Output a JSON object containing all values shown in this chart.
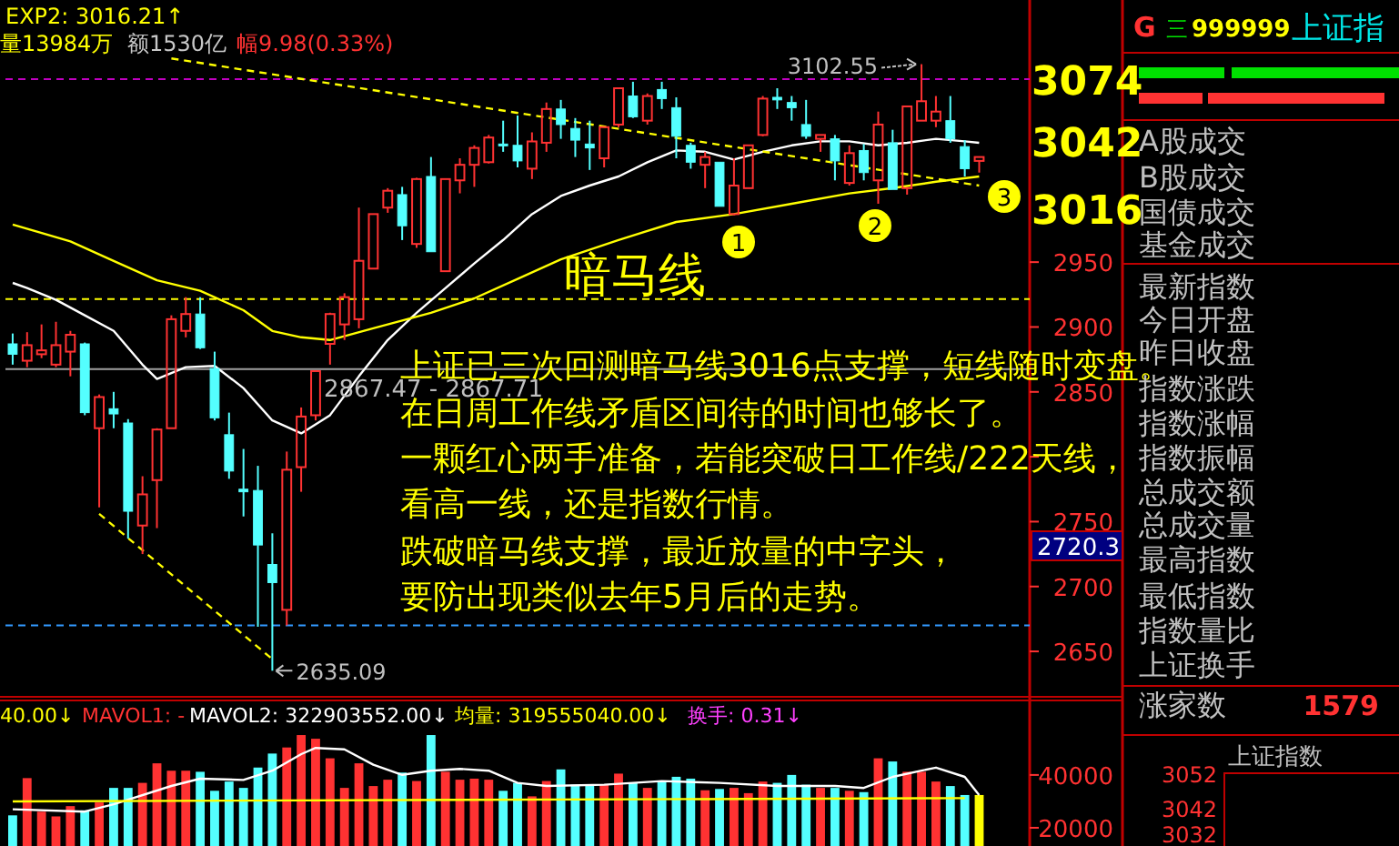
{
  "chart_data": [
    {
      "type": "candlestick",
      "categories": [
        null,
        null,
        null,
        null,
        null,
        null,
        null,
        null,
        null,
        null,
        null,
        null,
        null,
        null,
        null,
        null,
        null,
        null,
        null,
        null,
        null,
        null,
        null,
        null,
        null,
        null,
        null,
        null,
        null,
        null,
        null,
        null,
        null,
        null,
        null,
        null,
        null,
        null,
        null,
        null,
        null,
        null,
        null,
        null,
        null,
        null,
        null,
        null,
        null,
        null,
        null,
        null,
        null,
        null,
        null,
        null,
        null,
        null,
        null,
        null,
        null,
        null,
        null,
        null,
        null,
        null,
        null,
        null,
        null,
        null,
        null
      ],
      "ohlc": [
        [
          2887,
          2895,
          2871,
          2879
        ],
        [
          2874,
          2896,
          2869,
          2886
        ],
        [
          2879,
          2902,
          2876,
          2882
        ],
        [
          2871,
          2904,
          2869,
          2886
        ],
        [
          2881,
          2897,
          2862,
          2894
        ],
        [
          2887,
          2888,
          2832,
          2834
        ],
        [
          2822,
          2848,
          2761,
          2846
        ],
        [
          2837,
          2850,
          2822,
          2833
        ],
        [
          2826,
          2829,
          2737,
          2758
        ],
        [
          2747,
          2785,
          2725,
          2771
        ],
        [
          2782,
          2822,
          2745,
          2821
        ],
        [
          2822,
          2909,
          2822,
          2906
        ],
        [
          2897,
          2923,
          2892,
          2910
        ],
        [
          2910,
          2923,
          2883,
          2884
        ],
        [
          2868,
          2881,
          2828,
          2830
        ],
        [
          2817,
          2834,
          2783,
          2789
        ],
        [
          2775,
          2806,
          2754,
          2773
        ],
        [
          2774,
          2793,
          2669,
          2732
        ],
        [
          2717,
          2741,
          2635.09,
          2703
        ],
        [
          2682,
          2804,
          2670,
          2790
        ],
        [
          2792,
          2838,
          2773,
          2831
        ],
        [
          2832,
          2866,
          2828,
          2866
        ],
        [
          2887,
          2911,
          2871,
          2910
        ],
        [
          2902,
          2926,
          2890,
          2923
        ],
        [
          2906,
          2992,
          2899,
          2951
        ],
        [
          2945,
          2987,
          2945,
          2987
        ],
        [
          2992,
          3007,
          2988,
          3005
        ],
        [
          3002,
          3008,
          2967,
          2978
        ],
        [
          2964,
          3015,
          2961,
          3014
        ],
        [
          3016,
          3031,
          2958,
          2958
        ],
        [
          2943,
          3014,
          2943,
          3014
        ],
        [
          3013,
          3030,
          3003,
          3025
        ],
        [
          3025,
          3040,
          3008,
          3038
        ],
        [
          3027,
          3048,
          3026,
          3046
        ],
        [
          3041,
          3059,
          3035,
          3040
        ],
        [
          3040,
          3063,
          3023,
          3028
        ],
        [
          3022,
          3050,
          3014,
          3043
        ],
        [
          3042,
          3073,
          3035,
          3068
        ],
        [
          3068,
          3075,
          3045,
          3056
        ],
        [
          3053,
          3061,
          3031,
          3044
        ],
        [
          3041,
          3059,
          3021,
          3038
        ],
        [
          3030,
          3054,
          3023,
          3054
        ],
        [
          3056,
          3084,
          3054,
          3084
        ],
        [
          3078,
          3089,
          3061,
          3062
        ],
        [
          3059,
          3080,
          3056,
          3078
        ],
        [
          3083,
          3089,
          3068,
          3076
        ],
        [
          3069,
          3077,
          3030,
          3047
        ],
        [
          3040,
          3042,
          3022,
          3027
        ],
        [
          3025,
          3035,
          3007,
          3031
        ],
        [
          3027,
          3027,
          2993,
          2993
        ],
        [
          2987,
          3030,
          2986,
          3009
        ],
        [
          3007,
          3040,
          3007,
          3040
        ],
        [
          3048,
          3078,
          3047,
          3076
        ],
        [
          3077,
          3084,
          3068,
          3075
        ],
        [
          3073,
          3078,
          3059,
          3069
        ],
        [
          3056,
          3075,
          3045,
          3047
        ],
        [
          3045,
          3048,
          3035,
          3048
        ],
        [
          3045,
          3048,
          3013,
          3028
        ],
        [
          3011,
          3040,
          3009,
          3034
        ],
        [
          3036,
          3041,
          3013,
          3019
        ],
        [
          3013,
          3066,
          2995,
          3056
        ],
        [
          3042,
          3052,
          3006,
          3006
        ],
        [
          3007,
          3070,
          3002,
          3070
        ],
        [
          3059,
          3102.55,
          3059,
          3074
        ],
        [
          3059,
          3078,
          3054,
          3066
        ],
        [
          3059,
          3078,
          3042,
          3045
        ],
        [
          3039,
          3044,
          3016,
          3022
        ],
        [
          3028,
          3031,
          3019,
          3031
        ],
        null,
        null,
        null
      ],
      "colors": [
        "#54ffff",
        "#ff3232",
        "#ff3232",
        "#ff3232",
        "#ff3232",
        "#54ffff",
        "#ff3232",
        "#54ffff",
        "#54ffff",
        "#ff3232",
        "#ff3232",
        "#ff3232",
        "#ff3232",
        "#54ffff",
        "#54ffff",
        "#54ffff",
        "#54ffff",
        "#54ffff",
        "#54ffff",
        "#ff3232",
        "#ff3232",
        "#ff3232",
        "#ff3232",
        "#ff3232",
        "#ff3232",
        "#ff3232",
        "#ff3232",
        "#54ffff",
        "#ff3232",
        "#54ffff",
        "#ff3232",
        "#ff3232",
        "#ff3232",
        "#ff3232",
        "#54ffff",
        "#54ffff",
        "#ff3232",
        "#ff3232",
        "#54ffff",
        "#54ffff",
        "#54ffff",
        "#ff3232",
        "#ff3232",
        "#54ffff",
        "#ff3232",
        "#54ffff",
        "#54ffff",
        "#54ffff",
        "#ff3232",
        "#54ffff",
        "#ff3232",
        "#ff3232",
        "#ff3232",
        "#54ffff",
        "#54ffff",
        "#54ffff",
        "#ff3232",
        "#54ffff",
        "#ff3232",
        "#54ffff",
        "#ff3232",
        "#54ffff",
        "#ff3232",
        "#ff3232",
        "#ff3232",
        "#54ffff",
        "#54ffff",
        "#ff3232",
        null,
        null,
        null
      ],
      "series": [
        {
          "type": "line",
          "color": "#ffffff",
          "line_style": "solid",
          "values": [
            2934,
            2930,
            null,
            2921,
            null,
            2909,
            null,
            2897,
            null,
            2871,
            2860,
            null,
            2869,
            null,
            2870,
            null,
            2853,
            null,
            2828,
            null,
            2818,
            null,
            2832,
            null,
            2862,
            null,
            2890,
            null,
            2911,
            null,
            2930,
            null,
            2949,
            null,
            2967,
            null,
            2987,
            null,
            3001,
            null,
            3009,
            null,
            3016,
            null,
            3027,
            null,
            3036,
            null,
            3035,
            null,
            3029,
            null,
            3035,
            null,
            3040,
            null,
            3043,
            null,
            3043,
            null,
            3040,
            null,
            3042,
            null,
            3045,
            null,
            3043,
            3042,
            null,
            null,
            null
          ]
        },
        {
          "type": "line",
          "color": "#ffff00",
          "line_style": "solid",
          "values": [
            2979,
            null,
            null,
            null,
            2966,
            null,
            null,
            2951,
            null,
            null,
            2936,
            null,
            null,
            2928,
            null,
            null,
            2913,
            null,
            2897,
            null,
            2892,
            null,
            2890,
            null,
            null,
            2899,
            null,
            null,
            null,
            2911,
            null,
            null,
            2922,
            null,
            null,
            2937,
            null,
            null,
            2952,
            null,
            null,
            null,
            2967,
            null,
            null,
            null,
            2981,
            null,
            null,
            null,
            2987,
            null,
            null,
            null,
            2995,
            null,
            null,
            null,
            3003,
            null,
            null,
            3007,
            null,
            null,
            3012,
            null,
            null,
            3016,
            null,
            null,
            null
          ]
        },
        {
          "type": "line",
          "color": "#ffff00",
          "line_style": "dashed",
          "values": [
            null,
            null,
            null,
            null,
            null,
            null,
            null,
            null,
            null,
            null,
            null,
            3107,
            null,
            null,
            null,
            null,
            null,
            null,
            null,
            null,
            null,
            null,
            null,
            null,
            null,
            null,
            null,
            null,
            null,
            null,
            null,
            null,
            null,
            null,
            null,
            null,
            null,
            null,
            null,
            null,
            null,
            null,
            null,
            null,
            null,
            null,
            null,
            null,
            null,
            null,
            null,
            null,
            null,
            null,
            null,
            null,
            null,
            null,
            null,
            null,
            null,
            null,
            null,
            null,
            null,
            null,
            null,
            3009,
            null,
            null,
            null
          ]
        },
        {
          "type": "line",
          "color": "#ffff00",
          "line_style": "dashed",
          "values": [
            null,
            null,
            null,
            null,
            null,
            null,
            2756,
            null,
            null,
            null,
            null,
            null,
            null,
            null,
            null,
            null,
            null,
            null,
            2644,
            null,
            null,
            null,
            null,
            null,
            null,
            null,
            null,
            null,
            null,
            null,
            null,
            null,
            null,
            null,
            null,
            null,
            null,
            null,
            null,
            null,
            null,
            null,
            null,
            null,
            null,
            null,
            null,
            null,
            null,
            null,
            null,
            null,
            null,
            null,
            null,
            null,
            null,
            null,
            null,
            null,
            null,
            null,
            null,
            null,
            null,
            null,
            null,
            null,
            null,
            null,
            null
          ]
        }
      ],
      "ylim": [
        2615,
        3152
      ],
      "yticks": [
        2650,
        2700,
        2750,
        {
          "value": 2800,
          "label": null
        },
        2850,
        2900,
        2950
      ],
      "ref_lines": [
        {
          "axis": "y",
          "value": 3091,
          "color": "#c000c0",
          "line_style": "dashed"
        },
        {
          "axis": "y",
          "value": 2921.5,
          "color": "#ffff00",
          "line_style": "dashed"
        },
        {
          "axis": "y",
          "value": 2670,
          "color": "#3399ff",
          "line_style": "dashed"
        },
        {
          "axis": "y",
          "value": 2867.6,
          "color": "#a0a0a0",
          "line_style": "solid"
        }
      ],
      "annotations": [
        "EXP2: 3016.21↑",
        "量13984万",
        "额1530亿",
        "幅9.98(0.33%)",
        "3102.55",
        "2635.09",
        "2867.47 - 2867.71",
        "暗马线",
        "1",
        "2",
        "3",
        "上证已三次回测暗马线3016点支撑，短线随时变盘。",
        "在日周工作线矛盾区间待的时间也够长了。",
        "一颗红心两手准备，若能突破日工作线/222天线，",
        "看高一线，还是指数行情。",
        "跌破暗马线支撑，最近放量的中字头，",
        "要防出现类似去年5月后的走势。",
        "3074",
        "3042",
        "3016",
        "2720.3"
      ]
    },
    {
      "type": "bar",
      "categories": [
        null,
        null,
        null,
        null,
        null,
        null,
        null,
        null,
        null,
        null,
        null,
        null,
        null,
        null,
        null,
        null,
        null,
        null,
        null,
        null,
        null,
        null,
        null,
        null,
        null,
        null,
        null,
        null,
        null,
        null,
        null,
        null,
        null,
        null,
        null,
        null,
        null,
        null,
        null,
        null,
        null,
        null,
        null,
        null,
        null,
        null,
        null,
        null,
        null,
        null,
        null,
        null,
        null,
        null,
        null,
        null,
        null,
        null,
        null,
        null,
        null,
        null,
        null,
        null,
        null,
        null,
        null,
        null,
        null,
        null,
        null
      ],
      "series": [
        {
          "type": "bar",
          "values": [
            24700,
            38800,
            26100,
            24300,
            28200,
            26600,
            29600,
            35100,
            35100,
            37000,
            44400,
            41600,
            41600,
            41200,
            34000,
            37500,
            35100,
            42800,
            48100,
            50400,
            55100,
            53700,
            46300,
            35100,
            44400,
            35800,
            38200,
            40900,
            37700,
            55100,
            41200,
            38200,
            38600,
            38200,
            34000,
            37000,
            31900,
            37700,
            42100,
            36300,
            36300,
            36300,
            40500,
            37000,
            35100,
            37500,
            39300,
            38600,
            34200,
            34700,
            35100,
            33100,
            37500,
            37000,
            40000,
            36300,
            35100,
            35100,
            34000,
            33500,
            46300,
            45100,
            41200,
            41200,
            37500,
            35800,
            32400,
            32400,
            null,
            null,
            null
          ],
          "colors": [
            "#54ffff",
            "#ff3232",
            "#ff3232",
            "#ff3232",
            "#ff3232",
            "#54ffff",
            "#ff3232",
            "#54ffff",
            "#54ffff",
            "#ff3232",
            "#ff3232",
            "#ff3232",
            "#ff3232",
            "#54ffff",
            "#54ffff",
            "#54ffff",
            "#54ffff",
            "#54ffff",
            "#54ffff",
            "#ff3232",
            "#ff3232",
            "#ff3232",
            "#ff3232",
            "#ff3232",
            "#ff3232",
            "#ff3232",
            "#ff3232",
            "#54ffff",
            "#ff3232",
            "#54ffff",
            "#ff3232",
            "#ff3232",
            "#ff3232",
            "#ff3232",
            "#54ffff",
            "#54ffff",
            "#ff3232",
            "#ff3232",
            "#54ffff",
            "#54ffff",
            "#54ffff",
            "#ff3232",
            "#ff3232",
            "#54ffff",
            "#ff3232",
            "#54ffff",
            "#54ffff",
            "#54ffff",
            "#ff3232",
            "#54ffff",
            "#ff3232",
            "#ff3232",
            "#ff3232",
            "#54ffff",
            "#54ffff",
            "#54ffff",
            "#ff3232",
            "#54ffff",
            "#ff3232",
            "#54ffff",
            "#ff3232",
            "#54ffff",
            "#ff3232",
            "#ff3232",
            "#ff3232",
            "#54ffff",
            "#54ffff",
            "#ffff00",
            null,
            null,
            null
          ]
        },
        {
          "type": "line",
          "color": "#ffffff",
          "values": [
            27000,
            null,
            null,
            null,
            null,
            26100,
            null,
            28900,
            null,
            null,
            null,
            35800,
            null,
            38600,
            null,
            null,
            38100,
            null,
            41600,
            null,
            47900,
            50200,
            null,
            49700,
            null,
            43900,
            null,
            40000,
            null,
            41600,
            null,
            42300,
            null,
            41600,
            null,
            37000,
            null,
            35800,
            null,
            null,
            null,
            36300,
            null,
            null,
            null,
            37700,
            null,
            null,
            null,
            37000,
            null,
            null,
            null,
            35800,
            null,
            null,
            null,
            35800,
            null,
            35100,
            null,
            39300,
            null,
            41600,
            42800,
            null,
            39300,
            32400,
            null,
            null,
            null
          ]
        },
        {
          "type": "line",
          "color": "#ffff00",
          "values": [
            30000,
            null,
            null,
            null,
            null,
            null,
            null,
            null,
            null,
            null,
            null,
            null,
            null,
            null,
            null,
            null,
            null,
            null,
            null,
            null,
            null,
            null,
            null,
            null,
            null,
            null,
            null,
            null,
            null,
            null,
            null,
            null,
            null,
            null,
            null,
            null,
            null,
            null,
            null,
            null,
            null,
            null,
            null,
            null,
            null,
            null,
            null,
            null,
            null,
            null,
            null,
            null,
            null,
            null,
            null,
            null,
            null,
            null,
            null,
            null,
            null,
            null,
            null,
            null,
            null,
            null,
            31200,
            null,
            null,
            null,
            null
          ]
        }
      ],
      "ylim": [
        13100,
        68200
      ],
      "yticks": [
        20000,
        40000
      ],
      "annotations": [
        "40.00↓",
        "MAVOL1: -",
        "MAVOL2: 322903552.00↓",
        "均量: 319555040.00↓",
        "换手: 0.31↓"
      ]
    },
    {
      "type": "other",
      "annotations": [
        "G",
        "三",
        "999999",
        "上证指",
        "A股成交",
        "B股成交",
        "国债成交",
        "基金成交",
        "最新指数",
        "今日开盘",
        "昨日收盘",
        "指数涨跌",
        "指数涨幅",
        "指数振幅",
        "总成交额",
        "总成交量",
        "最高指数",
        "最低指数",
        "指数量比",
        "上证换手",
        "涨家数",
        "1579",
        "上证指数",
        "3052",
        "3042",
        "3032"
      ]
    }
  ]
}
